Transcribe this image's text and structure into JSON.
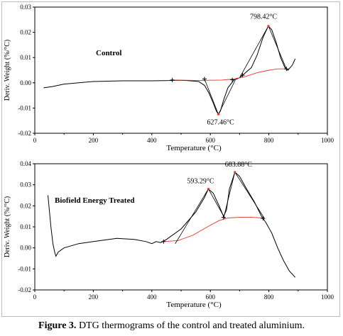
{
  "caption": {
    "label": "Figure 3.",
    "text": "DTG thermograms of the control and treated aluminium."
  },
  "colors": {
    "curve": "#000000",
    "baseline": "#e8332a",
    "axis": "#000000"
  },
  "chart_data": [
    {
      "type": "line",
      "title": "Control",
      "xlabel": "Temperature (°C)",
      "ylabel": "Deriv. Weight (%/°C)",
      "xlim": [
        0,
        1000
      ],
      "ylim": [
        -0.02,
        0.03
      ],
      "xticks": [
        0,
        200,
        400,
        600,
        800,
        1000
      ],
      "yticks": [
        -0.02,
        -0.01,
        0.0,
        0.01,
        0.02,
        0.03
      ],
      "ytick_labels": [
        "-0.02",
        "-0.01",
        "0.00",
        "0.01",
        "0.02",
        "0.03"
      ],
      "grid": false,
      "series": [
        {
          "points": [
            [
              30,
              -0.002
            ],
            [
              60,
              -0.0015
            ],
            [
              100,
              -0.0005
            ],
            [
              200,
              0.0005
            ],
            [
              300,
              0.0008
            ],
            [
              400,
              0.0008
            ],
            [
              460,
              0.0009
            ],
            [
              480,
              0.001
            ],
            [
              520,
              0.0009
            ],
            [
              560,
              0.0005
            ],
            [
              580,
              -0.001
            ],
            [
              595,
              -0.004
            ],
            [
              610,
              -0.008
            ],
            [
              620,
              -0.011
            ],
            [
              627.46,
              -0.0125
            ],
            [
              635,
              -0.011
            ],
            [
              645,
              -0.007
            ],
            [
              660,
              -0.002
            ],
            [
              680,
              0.001
            ],
            [
              700,
              0.002
            ],
            [
              720,
              0.004
            ],
            [
              740,
              0.006
            ],
            [
              760,
              0.011
            ],
            [
              780,
              0.018
            ],
            [
              798.42,
              0.0225
            ],
            [
              810,
              0.021
            ],
            [
              825,
              0.016
            ],
            [
              840,
              0.01
            ],
            [
              855,
              0.006
            ],
            [
              865,
              0.005
            ],
            [
              880,
              0.007
            ],
            [
              890,
              0.0095
            ]
          ]
        },
        {
          "points": [
            [
              470,
              0.0011
            ],
            [
              520,
              0.001
            ],
            [
              560,
              0.0009
            ],
            [
              600,
              0.001
            ],
            [
              640,
              0.0011
            ],
            [
              680,
              0.0015
            ],
            [
              720,
              0.0025
            ],
            [
              760,
              0.004
            ],
            [
              800,
              0.005
            ],
            [
              830,
              0.0055
            ],
            [
              860,
              0.0055
            ]
          ]
        }
      ],
      "tangent_lines": [
        [
          [
            580,
            0.0015
          ],
          [
            627.46,
            -0.0125
          ]
        ],
        [
          [
            627.46,
            -0.0125
          ],
          [
            685,
            0.001
          ]
        ],
        [
          [
            700,
            0.002
          ],
          [
            798.42,
            0.0225
          ]
        ],
        [
          [
            798.42,
            0.0225
          ],
          [
            860,
            0.0055
          ]
        ]
      ],
      "markers": [
        [
          470,
          0.0011
        ],
        [
          580,
          0.0015
        ],
        [
          675,
          0.0012
        ],
        [
          710,
          0.003
        ],
        [
          860,
          0.0055
        ]
      ],
      "annotations": [
        {
          "text": "627.46°C",
          "x": 627.46,
          "y": -0.0125
        },
        {
          "text": "798.42°C",
          "x": 798.42,
          "y": 0.0225
        }
      ]
    },
    {
      "type": "line",
      "title": "Biofield Energy Treated",
      "xlabel": "Temperature (°C)",
      "ylabel": "Deriv. Weight (%/°C)",
      "xlim": [
        0,
        1000
      ],
      "ylim": [
        -0.02,
        0.04
      ],
      "xticks": [
        0,
        200,
        400,
        600,
        800,
        1000
      ],
      "yticks": [
        -0.02,
        -0.01,
        0.0,
        0.01,
        0.02,
        0.03,
        0.04
      ],
      "ytick_labels": [
        "-0.02",
        "-0.01",
        "0.00",
        "0.01",
        "0.02",
        "0.03",
        "0.04"
      ],
      "grid": false,
      "series": [
        {
          "points": [
            [
              45,
              0.025
            ],
            [
              55,
              0.01
            ],
            [
              62,
              0.002
            ],
            [
              68,
              -0.002
            ],
            [
              72,
              -0.004
            ],
            [
              80,
              -0.002
            ],
            [
              100,
              0.0
            ],
            [
              150,
              0.002
            ],
            [
              200,
              0.003
            ],
            [
              280,
              0.0045
            ],
            [
              340,
              0.004
            ],
            [
              380,
              0.003
            ],
            [
              400,
              0.002
            ],
            [
              415,
              0.003
            ],
            [
              430,
              0.0025
            ],
            [
              450,
              0.004
            ],
            [
              500,
              0.009
            ],
            [
              550,
              0.017
            ],
            [
              580,
              0.024
            ],
            [
              593.29,
              0.028
            ],
            [
              610,
              0.026
            ],
            [
              630,
              0.02
            ],
            [
              645,
              0.015
            ],
            [
              655,
              0.018
            ],
            [
              665,
              0.028
            ],
            [
              683.88,
              0.036
            ],
            [
              700,
              0.034
            ],
            [
              720,
              0.029
            ],
            [
              750,
              0.022
            ],
            [
              775,
              0.015
            ],
            [
              790,
              0.012
            ],
            [
              810,
              0.007
            ],
            [
              830,
              0.0
            ],
            [
              850,
              -0.006
            ],
            [
              870,
              -0.011
            ],
            [
              890,
              -0.014
            ]
          ]
        },
        {
          "points": [
            [
              440,
              0.003
            ],
            [
              490,
              0.0035
            ],
            [
              540,
              0.006
            ],
            [
              590,
              0.01
            ],
            [
              630,
              0.013
            ],
            [
              660,
              0.0142
            ],
            [
              700,
              0.0145
            ],
            [
              740,
              0.0145
            ],
            [
              780,
              0.0142
            ]
          ]
        }
      ],
      "tangent_lines": [
        [
          [
            480,
            0.002
          ],
          [
            593.29,
            0.028
          ]
        ],
        [
          [
            593.29,
            0.028
          ],
          [
            650,
            0.014
          ]
        ],
        [
          [
            645,
            0.014
          ],
          [
            683.88,
            0.036
          ]
        ],
        [
          [
            683.88,
            0.036
          ],
          [
            785,
            0.014
          ]
        ]
      ],
      "markers": [
        [
          440,
          0.003
        ],
        [
          645,
          0.0145
        ],
        [
          780,
          0.014
        ]
      ],
      "annotations": [
        {
          "text": "593.29°C",
          "x": 593.29,
          "y": 0.028
        },
        {
          "text": "683.88°C",
          "x": 683.88,
          "y": 0.036
        }
      ]
    }
  ]
}
